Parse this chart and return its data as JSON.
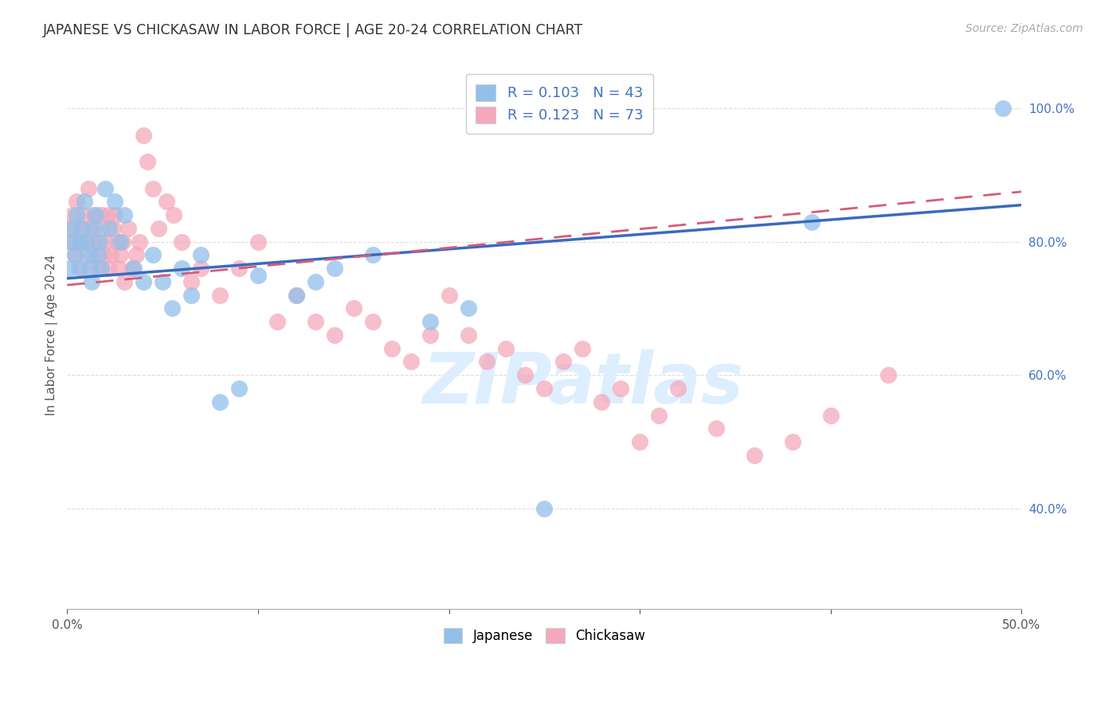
{
  "title": "JAPANESE VS CHICKASAW IN LABOR FORCE | AGE 20-24 CORRELATION CHART",
  "source": "Source: ZipAtlas.com",
  "ylabel": "In Labor Force | Age 20-24",
  "xlim": [
    0.0,
    0.5
  ],
  "ylim": [
    0.25,
    1.07
  ],
  "xtick_vals": [
    0.0,
    0.1,
    0.2,
    0.3,
    0.4,
    0.5
  ],
  "xtick_labels": [
    "0.0%",
    "",
    "",
    "",
    "",
    "50.0%"
  ],
  "ytick_vals": [
    0.4,
    0.6,
    0.8,
    1.0
  ],
  "ytick_labels": [
    "40.0%",
    "60.0%",
    "80.0%",
    "100.0%"
  ],
  "r_japanese": "0.103",
  "n_japanese": "43",
  "r_chickasaw": "0.123",
  "n_chickasaw": "73",
  "japanese_color": "#92c0ea",
  "chickasaw_color": "#f5a8bc",
  "line_japanese_color": "#3a6abf",
  "line_chickasaw_color": "#d45c7a",
  "watermark": "ZIPatlas",
  "watermark_color": "#ddeeff",
  "background": "#ffffff",
  "grid_color": "#dddddd",
  "japanese_x": [
    0.001,
    0.002,
    0.003,
    0.004,
    0.005,
    0.006,
    0.007,
    0.008,
    0.009,
    0.01,
    0.011,
    0.012,
    0.013,
    0.014,
    0.015,
    0.016,
    0.017,
    0.018,
    0.02,
    0.022,
    0.025,
    0.028,
    0.03,
    0.035,
    0.04,
    0.045,
    0.05,
    0.055,
    0.06,
    0.065,
    0.07,
    0.08,
    0.09,
    0.1,
    0.12,
    0.14,
    0.16,
    0.19,
    0.21,
    0.25,
    0.13,
    0.39,
    0.49
  ],
  "japanese_y": [
    0.76,
    0.8,
    0.82,
    0.78,
    0.84,
    0.76,
    0.8,
    0.82,
    0.86,
    0.8,
    0.78,
    0.76,
    0.74,
    0.82,
    0.84,
    0.78,
    0.8,
    0.76,
    0.88,
    0.82,
    0.86,
    0.8,
    0.84,
    0.76,
    0.74,
    0.78,
    0.74,
    0.7,
    0.76,
    0.72,
    0.78,
    0.56,
    0.58,
    0.75,
    0.72,
    0.76,
    0.78,
    0.68,
    0.7,
    0.4,
    0.74,
    0.83,
    1.0
  ],
  "chickasaw_x": [
    0.001,
    0.002,
    0.003,
    0.004,
    0.005,
    0.006,
    0.007,
    0.008,
    0.009,
    0.01,
    0.011,
    0.012,
    0.013,
    0.014,
    0.015,
    0.016,
    0.017,
    0.018,
    0.019,
    0.02,
    0.021,
    0.022,
    0.023,
    0.024,
    0.025,
    0.026,
    0.027,
    0.028,
    0.029,
    0.03,
    0.032,
    0.034,
    0.036,
    0.038,
    0.04,
    0.042,
    0.045,
    0.048,
    0.052,
    0.056,
    0.06,
    0.065,
    0.07,
    0.08,
    0.09,
    0.1,
    0.11,
    0.12,
    0.13,
    0.14,
    0.15,
    0.16,
    0.17,
    0.18,
    0.19,
    0.2,
    0.21,
    0.22,
    0.23,
    0.24,
    0.25,
    0.26,
    0.27,
    0.28,
    0.29,
    0.3,
    0.31,
    0.32,
    0.34,
    0.36,
    0.38,
    0.4,
    0.43
  ],
  "chickasaw_y": [
    0.82,
    0.8,
    0.84,
    0.78,
    0.86,
    0.8,
    0.82,
    0.76,
    0.84,
    0.8,
    0.88,
    0.82,
    0.78,
    0.84,
    0.8,
    0.76,
    0.82,
    0.84,
    0.78,
    0.8,
    0.84,
    0.76,
    0.78,
    0.82,
    0.84,
    0.8,
    0.76,
    0.78,
    0.8,
    0.74,
    0.82,
    0.76,
    0.78,
    0.8,
    0.96,
    0.92,
    0.88,
    0.82,
    0.86,
    0.84,
    0.8,
    0.74,
    0.76,
    0.72,
    0.76,
    0.8,
    0.68,
    0.72,
    0.68,
    0.66,
    0.7,
    0.68,
    0.64,
    0.62,
    0.66,
    0.72,
    0.66,
    0.62,
    0.64,
    0.6,
    0.58,
    0.62,
    0.64,
    0.56,
    0.58,
    0.5,
    0.54,
    0.58,
    0.52,
    0.48,
    0.5,
    0.54,
    0.6
  ]
}
